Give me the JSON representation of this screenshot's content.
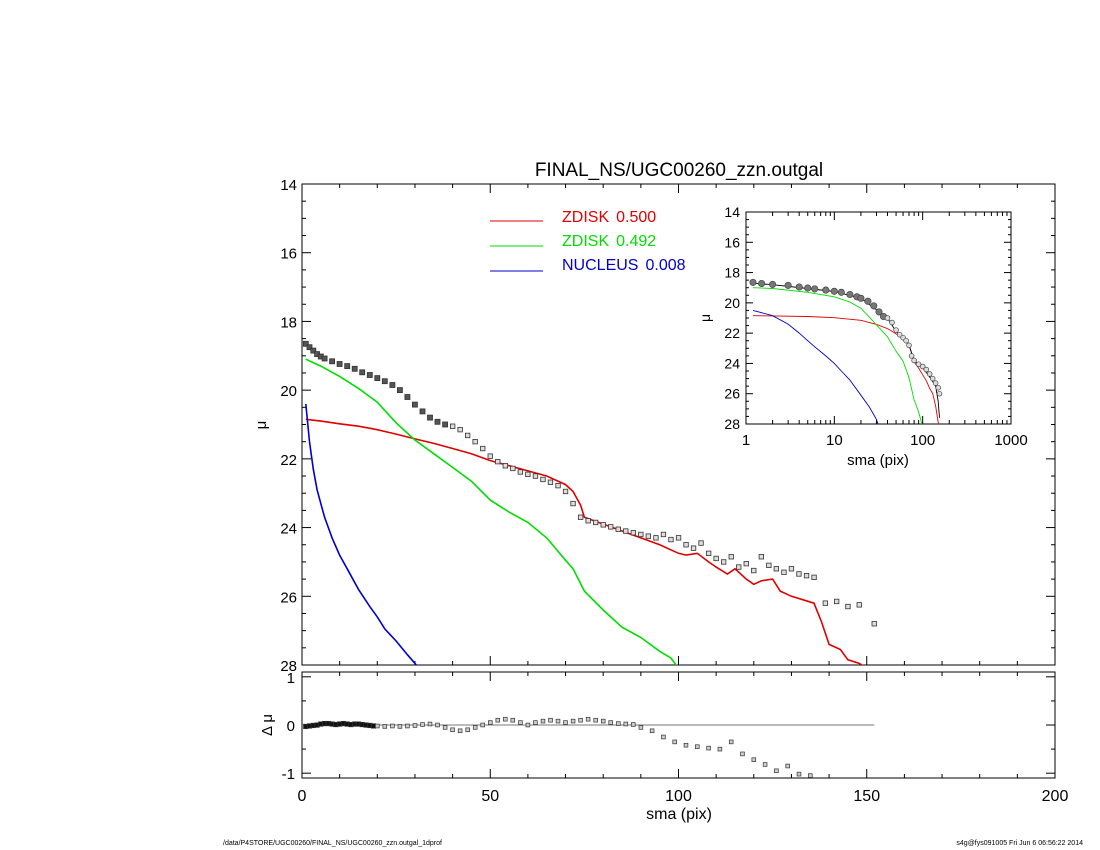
{
  "footer": {
    "path": "/data/P4STORE/UGC00260/FINAL_NS/UGC00260_zzn.outgal_1dprof",
    "stamp": "s4g@fys091005  Fri Jun  6 06:56:22 2014"
  },
  "chart_data": [
    {
      "type": "line",
      "title": "FINAL_NS/UGC00260_zzn.outgal",
      "xlabel": "",
      "ylabel": "μ",
      "xlim": [
        0,
        200
      ],
      "ylim": [
        28,
        14
      ],
      "y_inverted": true,
      "x_ticks": [
        0,
        50,
        100,
        150,
        200
      ],
      "x_tick_labels": [
        "",
        "",
        "",
        "",
        ""
      ],
      "y_ticks": [
        14,
        16,
        18,
        20,
        22,
        24,
        26,
        28
      ],
      "y_tick_labels": [
        "14",
        "16",
        "18",
        "20",
        "22",
        "24",
        "26",
        "28"
      ],
      "legend_position": "top-center",
      "legend": [
        {
          "label": "ZDISK",
          "value": "0.500",
          "color": "#e00000"
        },
        {
          "label": "ZDISK",
          "value": "0.492",
          "color": "#00dd00"
        },
        {
          "label": "NUCLEUS",
          "value": "0.008",
          "color": "#0000cc"
        }
      ],
      "data_points": {
        "name": "data",
        "x": [
          1,
          2,
          3,
          4,
          5,
          6,
          8,
          10,
          12,
          14,
          16,
          18,
          20,
          22,
          24,
          26,
          28,
          30,
          32,
          34,
          36,
          38,
          40,
          42,
          44,
          46,
          48,
          50,
          52,
          54,
          56,
          58,
          60,
          62,
          64,
          66,
          68,
          70,
          72,
          74,
          76,
          78,
          80,
          82,
          84,
          86,
          88,
          90,
          92,
          94,
          96,
          98,
          100,
          102,
          104,
          106,
          108,
          110,
          112,
          114,
          116,
          118,
          120,
          122,
          124,
          126,
          128,
          130,
          132,
          134,
          136,
          139,
          142,
          145,
          148,
          152
        ],
        "y": [
          18.65,
          18.75,
          18.85,
          18.95,
          19.02,
          19.08,
          19.16,
          19.24,
          19.3,
          19.38,
          19.48,
          19.56,
          19.65,
          19.74,
          19.85,
          20.0,
          20.2,
          20.42,
          20.62,
          20.8,
          20.92,
          21.0,
          21.05,
          21.15,
          21.32,
          21.5,
          21.7,
          21.92,
          22.08,
          22.2,
          22.28,
          22.38,
          22.45,
          22.5,
          22.6,
          22.68,
          22.78,
          22.95,
          23.3,
          23.7,
          23.8,
          23.85,
          23.92,
          23.98,
          24.05,
          24.1,
          24.15,
          24.2,
          24.25,
          24.3,
          24.2,
          24.35,
          24.3,
          24.5,
          24.6,
          24.45,
          24.75,
          24.9,
          25.0,
          24.85,
          25.15,
          25.05,
          25.25,
          24.85,
          25.1,
          25.2,
          25.3,
          25.2,
          25.35,
          25.4,
          25.45,
          26.2,
          26.15,
          26.3,
          26.25,
          26.8
        ]
      },
      "series": [
        {
          "name": "ZDISK 0.500",
          "color": "#e00000",
          "x": [
            1,
            5,
            10,
            15,
            20,
            25,
            30,
            35,
            40,
            45,
            50,
            55,
            60,
            65,
            70,
            72,
            74,
            75,
            80,
            85,
            90,
            95,
            100,
            102,
            105,
            108,
            110,
            113,
            115,
            118,
            120,
            122,
            125,
            127,
            130,
            133,
            136,
            138,
            140,
            143,
            145,
            148,
            150
          ],
          "y": [
            20.85,
            20.9,
            20.98,
            21.05,
            21.15,
            21.28,
            21.42,
            21.55,
            21.7,
            21.85,
            22.05,
            22.2,
            22.35,
            22.5,
            22.75,
            22.95,
            23.35,
            23.7,
            23.9,
            24.1,
            24.3,
            24.5,
            24.75,
            24.8,
            24.75,
            25.0,
            25.15,
            25.35,
            25.2,
            25.5,
            25.65,
            25.55,
            25.5,
            25.85,
            26.0,
            26.1,
            26.2,
            26.75,
            27.4,
            27.55,
            27.85,
            27.95,
            28.1
          ]
        },
        {
          "name": "ZDISK 0.492",
          "color": "#00dd00",
          "x": [
            1,
            5,
            10,
            15,
            20,
            25,
            30,
            35,
            40,
            45,
            50,
            55,
            60,
            65,
            70,
            72,
            75,
            80,
            85,
            90,
            95,
            98,
            100
          ],
          "y": [
            19.1,
            19.3,
            19.6,
            19.95,
            20.35,
            20.95,
            21.45,
            21.85,
            22.25,
            22.65,
            23.2,
            23.55,
            23.85,
            24.3,
            24.95,
            25.2,
            25.85,
            26.4,
            26.9,
            27.2,
            27.6,
            27.8,
            28.1
          ]
        },
        {
          "name": "NUCLEUS 0.008",
          "color": "#0000cc",
          "x": [
            1,
            2,
            3,
            4,
            5,
            6,
            8,
            10,
            12,
            15,
            18,
            20,
            22,
            25,
            28,
            30,
            31
          ],
          "y": [
            20.4,
            21.5,
            22.3,
            22.9,
            23.3,
            23.7,
            24.3,
            24.8,
            25.2,
            25.8,
            26.3,
            26.6,
            26.95,
            27.3,
            27.7,
            27.95,
            28.1
          ]
        }
      ]
    },
    {
      "type": "scatter",
      "title": "",
      "xlabel": "sma (pix)",
      "ylabel": "Δ μ",
      "xlim": [
        0,
        200
      ],
      "ylim": [
        -1.1,
        1.1
      ],
      "x_ticks": [
        0,
        50,
        100,
        150,
        200
      ],
      "x_tick_labels": [
        "0",
        "50",
        "100",
        "150",
        "200"
      ],
      "y_ticks": [
        -1,
        0,
        1
      ],
      "y_tick_labels": [
        "-1",
        "0",
        "1"
      ],
      "zero_line": {
        "x": [
          0,
          152
        ],
        "y": 0
      },
      "residuals": {
        "x": [
          1,
          2,
          3,
          4,
          5,
          6,
          7,
          8,
          9,
          10,
          11,
          12,
          13,
          14,
          15,
          16,
          17,
          18,
          19,
          20,
          22,
          24,
          26,
          28,
          30,
          32,
          34,
          36,
          38,
          40,
          42,
          44,
          46,
          48,
          50,
          52,
          54,
          56,
          58,
          60,
          62,
          64,
          66,
          68,
          70,
          72,
          74,
          76,
          78,
          80,
          82,
          84,
          86,
          88,
          90,
          93,
          96,
          99,
          102,
          105,
          108,
          111,
          114,
          117,
          120,
          123,
          126,
          129,
          132,
          135
        ],
        "y": [
          -0.03,
          -0.02,
          -0.01,
          0.0,
          0.02,
          0.03,
          0.03,
          0.02,
          0.01,
          0.02,
          0.03,
          0.02,
          0.01,
          0.02,
          0.02,
          0.01,
          0.0,
          -0.01,
          -0.02,
          -0.02,
          -0.03,
          -0.02,
          -0.03,
          -0.02,
          -0.01,
          0.01,
          0.02,
          0.0,
          -0.05,
          -0.1,
          -0.12,
          -0.1,
          -0.05,
          0.0,
          0.05,
          0.1,
          0.12,
          0.1,
          0.05,
          0.0,
          0.05,
          0.08,
          0.1,
          0.08,
          0.05,
          0.08,
          0.1,
          0.12,
          0.1,
          0.08,
          0.05,
          0.03,
          0.02,
          0.01,
          -0.05,
          -0.12,
          -0.25,
          -0.35,
          -0.42,
          -0.45,
          -0.48,
          -0.5,
          -0.35,
          -0.6,
          -0.72,
          -0.82,
          -0.95,
          -0.85,
          -1.02,
          -1.05
        ]
      }
    },
    {
      "type": "line",
      "title": "",
      "xlabel": "sma (pix)",
      "ylabel": "μ",
      "x_scale": "log",
      "xlim": [
        1,
        1000
      ],
      "ylim": [
        28,
        14
      ],
      "y_inverted": true,
      "x_ticks": [
        1,
        10,
        100,
        1000
      ],
      "x_tick_labels": [
        "1",
        "10",
        "100",
        "1000"
      ],
      "y_ticks": [
        14,
        16,
        18,
        20,
        22,
        24,
        26,
        28
      ],
      "y_tick_labels": [
        "14",
        "16",
        "18",
        "20",
        "22",
        "24",
        "26",
        "28"
      ],
      "data_points": {
        "x": [
          1.2,
          1.5,
          2,
          3,
          4,
          5,
          6,
          8,
          10,
          12,
          15,
          18,
          20,
          24,
          28,
          32,
          36,
          40,
          45,
          50,
          55,
          60,
          65,
          70,
          75,
          80,
          90,
          100,
          110,
          120,
          130,
          140,
          150,
          155
        ],
        "y": [
          18.65,
          18.72,
          18.78,
          18.85,
          18.95,
          19.02,
          19.08,
          19.16,
          19.24,
          19.3,
          19.45,
          19.6,
          19.7,
          19.9,
          20.2,
          20.6,
          20.9,
          21.0,
          21.3,
          21.8,
          22.1,
          22.3,
          22.5,
          22.8,
          23.5,
          23.8,
          24.05,
          24.2,
          24.4,
          24.7,
          25.0,
          25.3,
          25.6,
          26.0
        ]
      },
      "series": [
        {
          "name": "ZDISK 0.500",
          "color": "#e00000",
          "x": [
            1.2,
            2,
            5,
            10,
            20,
            30,
            40,
            50,
            60,
            70,
            80,
            90,
            100,
            110,
            120,
            130,
            140,
            150,
            155
          ],
          "y": [
            20.85,
            20.86,
            20.9,
            20.98,
            21.15,
            21.42,
            21.7,
            22.05,
            22.35,
            22.75,
            23.9,
            24.3,
            24.75,
            25.15,
            25.65,
            26.0,
            26.8,
            27.9,
            28.2
          ]
        },
        {
          "name": "ZDISK 0.492",
          "color": "#00dd00",
          "x": [
            1.2,
            2,
            5,
            10,
            15,
            20,
            30,
            40,
            50,
            60,
            70,
            80,
            90,
            100
          ],
          "y": [
            19.0,
            19.05,
            19.3,
            19.6,
            19.95,
            20.35,
            21.45,
            22.25,
            23.2,
            23.85,
            24.95,
            26.4,
            27.2,
            28.2
          ]
        },
        {
          "name": "NUCLEUS 0.008",
          "color": "#0000cc",
          "x": [
            1.2,
            1.5,
            2,
            3,
            4,
            5,
            6,
            8,
            10,
            12,
            15,
            20,
            25,
            30,
            32
          ],
          "y": [
            20.5,
            20.65,
            20.85,
            21.4,
            22.0,
            22.5,
            22.9,
            23.5,
            24.0,
            24.5,
            25.1,
            26.1,
            26.9,
            27.7,
            28.2
          ]
        },
        {
          "name": "model",
          "color": "#000000",
          "x": [
            1.2,
            2,
            5,
            10,
            20,
            30,
            40,
            50,
            60,
            70,
            80,
            90,
            100,
            110,
            120,
            130,
            140,
            150,
            155
          ],
          "y": [
            18.7,
            18.8,
            19.05,
            19.25,
            19.7,
            20.45,
            21.0,
            21.9,
            22.3,
            22.8,
            23.8,
            24.1,
            24.3,
            24.6,
            24.9,
            25.2,
            25.5,
            26.5,
            27.6
          ]
        }
      ]
    }
  ]
}
